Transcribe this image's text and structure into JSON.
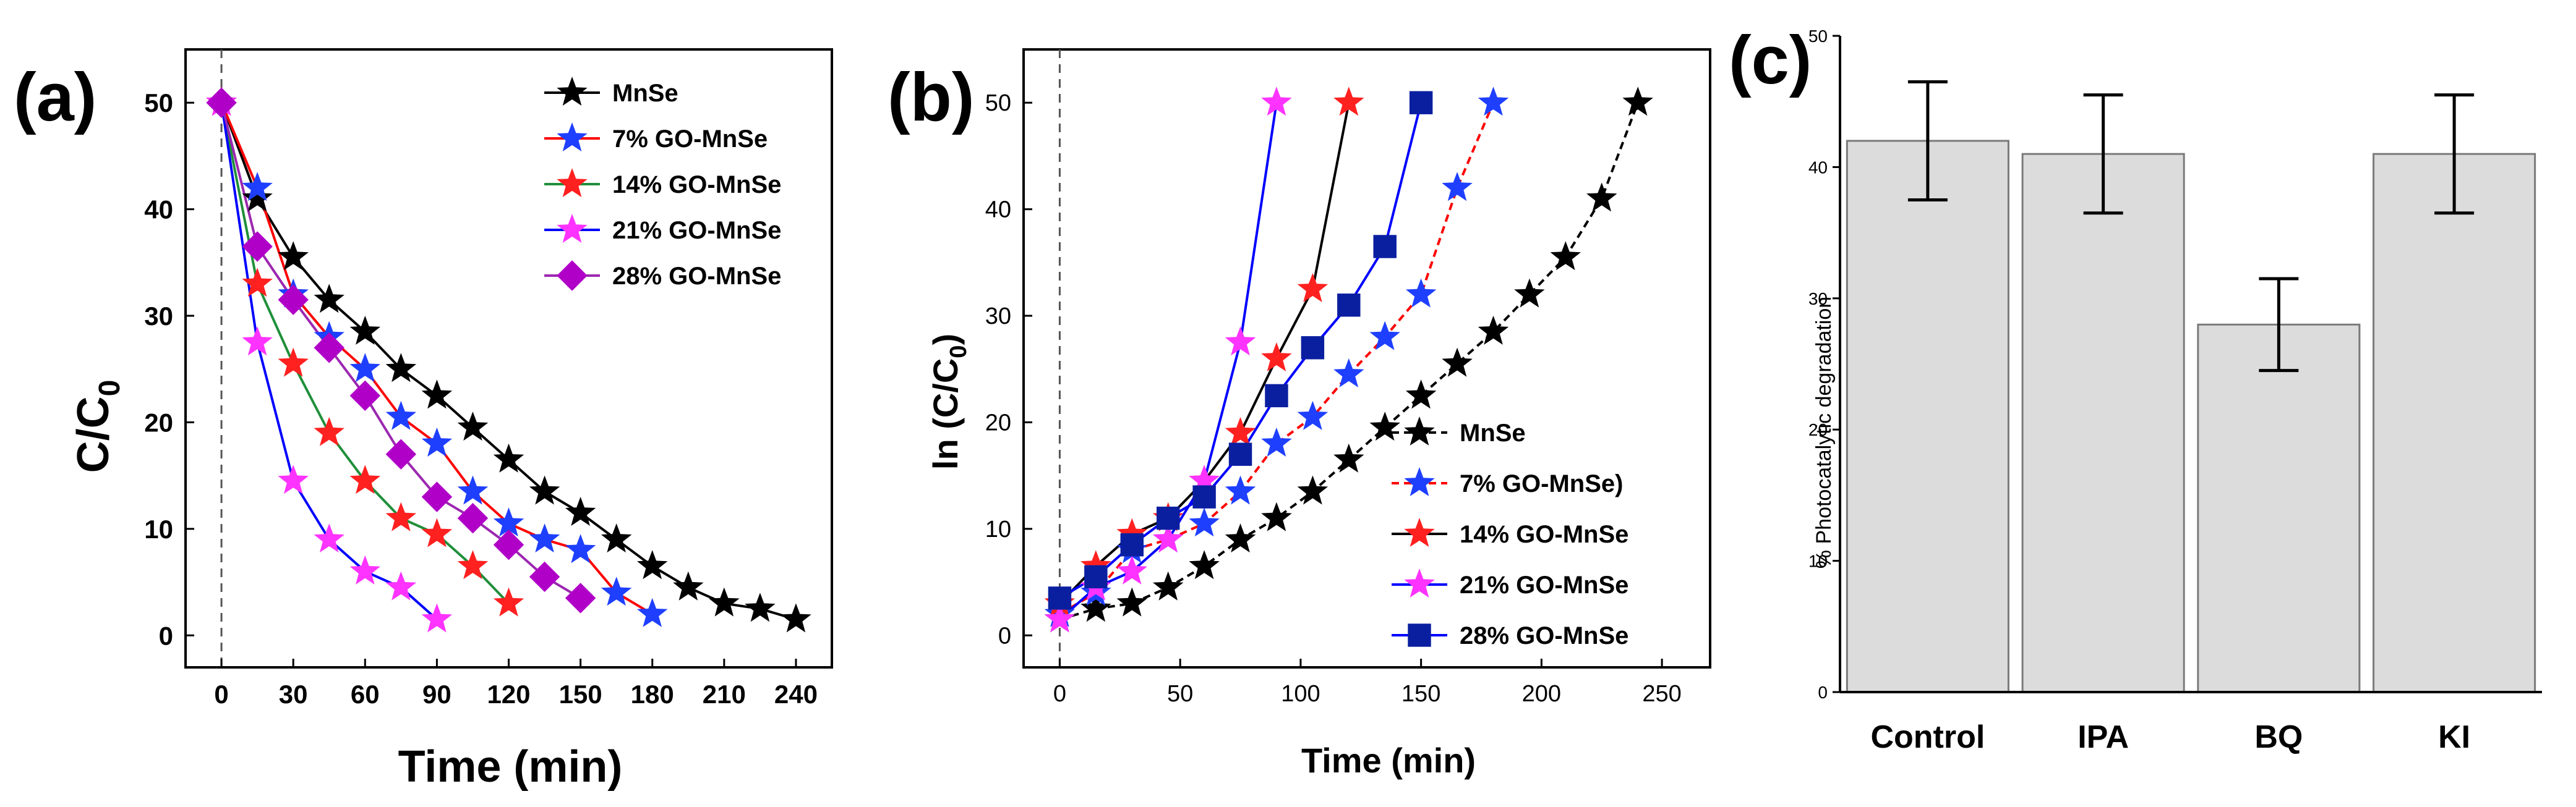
{
  "colors": {
    "MnSe": "#000000",
    "7% GO-MnSe": "#ff0000",
    "14% GO-MnSe": "#1f8f3a",
    "21% GO-MnSe": "#0000ff",
    "28% GO-MnSe": "#9c27b0",
    "bar_fill": "#dcdcdc",
    "marker_star_7": "#1f3fff",
    "marker_star_14": "#ff2020",
    "marker_star_21": "#ff33ff",
    "marker_diamond": "#b000c8",
    "marker_square": "#0a1fa0"
  },
  "chart_data": [
    {
      "panel": "(a)",
      "type": "line",
      "xlabel": "Time (min)",
      "ylabel": "C/C0",
      "ylabel_main": "C/C",
      "ylabel_sub": "0",
      "xlim": [
        -15,
        255
      ],
      "ylim": [
        -3,
        55
      ],
      "xticks": [
        0,
        30,
        60,
        90,
        120,
        150,
        180,
        210,
        240
      ],
      "yticks": [
        0,
        10,
        20,
        30,
        40,
        50
      ],
      "legend_position": "top-right",
      "series": [
        {
          "name": "MnSe",
          "color_key": "MnSe",
          "marker": "star",
          "marker_color": "#000000",
          "x": [
            0,
            15,
            30,
            45,
            60,
            75,
            90,
            105,
            120,
            135,
            150,
            165,
            180,
            195,
            210,
            225,
            240
          ],
          "y": [
            50,
            41,
            35.5,
            31.5,
            28.5,
            25,
            22.5,
            19.5,
            16.5,
            13.5,
            11.5,
            9,
            6.5,
            4.5,
            3,
            2.5,
            1.5
          ]
        },
        {
          "name": "7% GO-MnSe",
          "color_key": "7% GO-MnSe",
          "marker": "star",
          "marker_color": "#1f3fff",
          "x": [
            0,
            15,
            30,
            45,
            60,
            75,
            90,
            105,
            120,
            135,
            150,
            165,
            180
          ],
          "y": [
            50,
            42,
            32,
            28,
            25,
            20.5,
            18,
            13.5,
            10.5,
            9,
            8,
            4,
            2
          ]
        },
        {
          "name": "14% GO-MnSe",
          "color_key": "14% GO-MnSe",
          "marker": "star",
          "marker_color": "#ff2020",
          "x": [
            0,
            15,
            30,
            45,
            60,
            75,
            90,
            105,
            120
          ],
          "y": [
            50,
            33,
            25.5,
            19,
            14.5,
            11,
            9.5,
            6.5,
            3
          ]
        },
        {
          "name": "21% GO-MnSe",
          "color_key": "21% GO-MnSe",
          "marker": "star",
          "marker_color": "#ff33ff",
          "x": [
            0,
            15,
            30,
            45,
            60,
            75,
            90
          ],
          "y": [
            50,
            27.5,
            14.5,
            9,
            6,
            4.5,
            1.5
          ]
        },
        {
          "name": "28% GO-MnSe",
          "color_key": "28% GO-MnSe",
          "marker": "diamond",
          "marker_color": "#b000c8",
          "x": [
            0,
            15,
            30,
            45,
            60,
            75,
            90,
            105,
            120,
            135,
            150
          ],
          "y": [
            50,
            36.5,
            31.5,
            27,
            22.5,
            17,
            13,
            11,
            8.5,
            5.5,
            3.5
          ]
        }
      ]
    },
    {
      "panel": "(b)",
      "type": "line",
      "xlabel": "Time (min)",
      "ylabel": "ln (C/C0)",
      "ylabel_main": "ln (C/C",
      "ylabel_sub": "0",
      "ylabel_close": ")",
      "xlim": [
        -15,
        270
      ],
      "ylim": [
        -3,
        55
      ],
      "xticks": [
        0,
        50,
        100,
        150,
        200,
        250
      ],
      "yticks": [
        0,
        10,
        20,
        30,
        40,
        50
      ],
      "legend_position": "lower-right",
      "series": [
        {
          "name": "MnSe",
          "line_color": "#000000",
          "marker": "star",
          "marker_color": "#000000",
          "dashed": true,
          "x": [
            0,
            15,
            30,
            45,
            60,
            75,
            90,
            105,
            120,
            135,
            150,
            165,
            180,
            195,
            210,
            225,
            240
          ],
          "y": [
            1.5,
            2.5,
            3,
            4.5,
            6.5,
            9,
            11,
            13.5,
            16.5,
            19.5,
            22.5,
            25.5,
            28.5,
            32,
            35.5,
            41,
            50
          ]
        },
        {
          "name": "7% GO-MnSe)",
          "line_color": "#ff0000",
          "marker": "star",
          "marker_color": "#1f3fff",
          "dashed": true,
          "x": [
            0,
            15,
            30,
            45,
            60,
            75,
            90,
            105,
            120,
            135,
            150,
            165,
            180
          ],
          "y": [
            2,
            4,
            8,
            9,
            10.5,
            13.5,
            18,
            20.5,
            24.5,
            28,
            32,
            42,
            50
          ]
        },
        {
          "name": "14% GO-MnSe",
          "line_color": "#000000",
          "marker": "star",
          "marker_color": "#ff2020",
          "dashed": false,
          "x": [
            0,
            15,
            30,
            45,
            60,
            75,
            90,
            105,
            120
          ],
          "y": [
            3,
            6.5,
            9.5,
            11,
            14.5,
            19,
            26,
            32.5,
            50
          ]
        },
        {
          "name": "21% GO-MnSe",
          "line_color": "#0000ff",
          "marker": "star",
          "marker_color": "#ff33ff",
          "dashed": false,
          "x": [
            0,
            15,
            30,
            45,
            60,
            75,
            90
          ],
          "y": [
            1.5,
            4.5,
            6,
            9,
            14.5,
            27.5,
            50
          ]
        },
        {
          "name": "28% GO-MnSe",
          "line_color": "#0000ff",
          "marker": "square",
          "marker_color": "#0a1fa0",
          "dashed": false,
          "x": [
            0,
            15,
            30,
            45,
            60,
            75,
            90,
            105,
            120,
            135,
            150
          ],
          "y": [
            3.5,
            5.5,
            8.5,
            11,
            13,
            17,
            22.5,
            27,
            31,
            36.5,
            50
          ]
        }
      ]
    },
    {
      "panel": "(c)",
      "type": "bar",
      "ylabel": "% Photocatalytic degradation",
      "ylim": [
        0,
        50
      ],
      "yticks": [
        0,
        10,
        20,
        30,
        40,
        50
      ],
      "categories": [
        "Control",
        "IPA",
        "BQ",
        "KI"
      ],
      "values": [
        42,
        41,
        28,
        41
      ],
      "error_low": [
        37.5,
        36.5,
        24.5,
        36.5
      ],
      "error_high": [
        46.5,
        45.5,
        31.5,
        45.5
      ]
    }
  ]
}
